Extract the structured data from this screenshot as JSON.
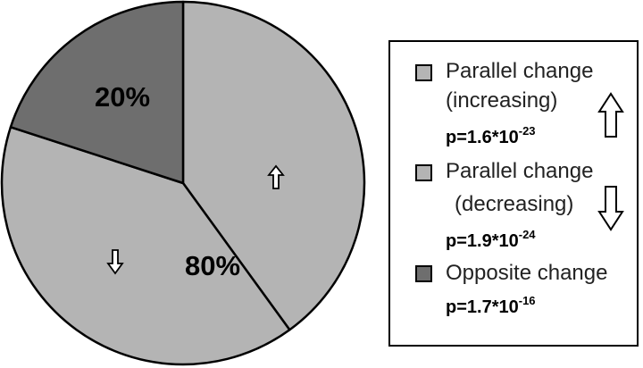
{
  "chart_data": {
    "type": "pie",
    "slices": [
      {
        "label": "Parallel change (increasing)",
        "value": 40,
        "color": "#b4b4b4"
      },
      {
        "label": "Parallel change (decreasing)",
        "value": 40,
        "color": "#b4b4b4"
      },
      {
        "label": "Opposite change",
        "value": 20,
        "color": "#6e6e6e"
      }
    ],
    "annotations": {
      "parallel_percent": "80%",
      "opposite_percent": "20%"
    },
    "legend_position": "right",
    "legend": [
      {
        "line1": "Parallel change",
        "line2": "(increasing)",
        "p_base": "p=1.6*10",
        "p_exp": "-23",
        "arrow": "up",
        "color": "#b4b4b4"
      },
      {
        "line1": "Parallel change",
        "line2": "(decreasing)",
        "p_base": "p=1.9*10",
        "p_exp": "-24",
        "arrow": "down",
        "color": "#b4b4b4"
      },
      {
        "line1": "Opposite change",
        "line2": "",
        "p_base": "p=1.7*10",
        "p_exp": "-16",
        "arrow": "",
        "color": "#6e6e6e"
      }
    ]
  }
}
